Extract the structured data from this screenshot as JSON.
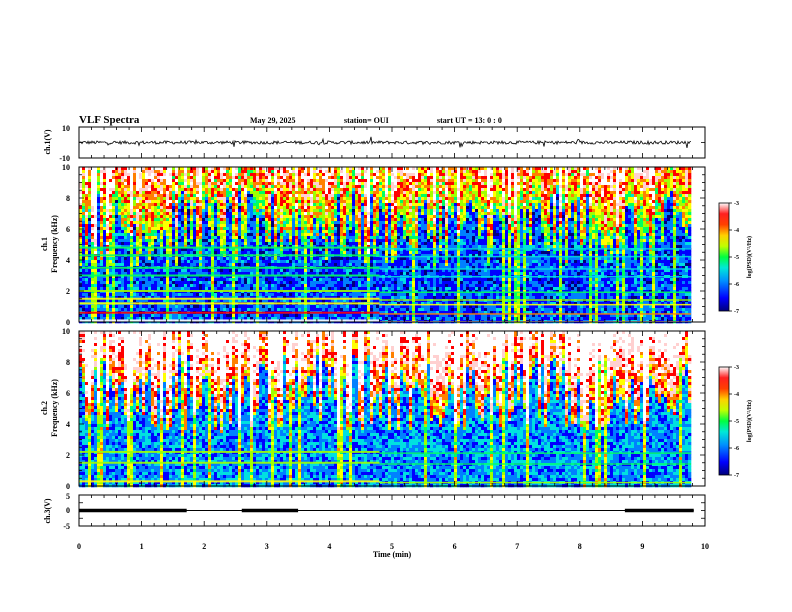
{
  "header": {
    "title": "VLF Spectra",
    "date": "May 29, 2025",
    "station": "station= OUI",
    "start_ut": "start  UT  =   13: 0  : 0"
  },
  "colors": {
    "trace": "#000000",
    "colormap": [
      "#00007a",
      "#0000ff",
      "#0080ff",
      "#00e0e0",
      "#00ff60",
      "#a0ff00",
      "#ffff00",
      "#ff8000",
      "#ff0000",
      "#ffd0d0",
      "#ffffff"
    ]
  },
  "chart_data": [
    {
      "type": "line",
      "name": "ch1-waveform",
      "ylabel": "ch.1(V)",
      "ylim": [
        -10,
        10
      ],
      "yticks": [
        "10",
        "-10"
      ],
      "xlim": [
        0,
        10
      ],
      "baseline_value": 0,
      "noise_amplitude": 1.5
    },
    {
      "type": "heatmap",
      "name": "ch1-spectrogram",
      "ylabel": "ch.1\nFrequency (kHz)",
      "ylim": [
        0,
        10
      ],
      "yticks": [
        "0",
        "2",
        "4",
        "6",
        "8",
        "10"
      ],
      "xlim": [
        0,
        10
      ],
      "colorbar": {
        "label": "log(PSD)(V²/Hz)",
        "ticks": [
          "-3",
          "-4",
          "-5",
          "-6",
          "-7"
        ],
        "range": [
          -7,
          -3
        ]
      },
      "bands": [
        {
          "freq_khz": 0.1,
          "level": -3.0
        },
        {
          "freq_khz": 0.6,
          "level": -4.0
        },
        {
          "freq_khz": 1.2,
          "level": -4.5
        },
        {
          "freq_khz": 1.5,
          "level": -4.8
        },
        {
          "freq_khz": 2.0,
          "level": -5.2
        },
        {
          "freq_khz": 3.0,
          "level": -5.4
        },
        {
          "freq_khz": 3.5,
          "level": -5.4
        },
        {
          "freq_khz": 4.3,
          "level": -5.4
        },
        {
          "freq_khz": 4.8,
          "level": -5.4
        }
      ],
      "band_shift_time_min": 4.8
    },
    {
      "type": "heatmap",
      "name": "ch2-spectrogram",
      "ylabel": "ch.2\nFrequency (kHz)",
      "ylim": [
        0,
        10
      ],
      "yticks": [
        "0",
        "2",
        "4",
        "6",
        "8",
        "10"
      ],
      "xlim": [
        0,
        10
      ],
      "colorbar": {
        "label": "log(PSD)(V²/Hz)",
        "ticks": [
          "-3",
          "-4",
          "-5",
          "-6",
          "-7"
        ],
        "range": [
          -7,
          -3
        ]
      },
      "bands": [
        {
          "freq_khz": 0.3,
          "level": -4.8
        },
        {
          "freq_khz": 1.5,
          "level": -5.0
        },
        {
          "freq_khz": 2.2,
          "level": -5.2
        }
      ],
      "band_shift_time_min": 4.8
    },
    {
      "type": "line",
      "name": "ch3-signal",
      "ylabel": "ch.3(V)",
      "ylim": [
        -5,
        5
      ],
      "yticks": [
        "5",
        "0",
        "-5"
      ],
      "xlim": [
        0,
        10
      ],
      "xlabel": "Time (min)",
      "xticks": [
        "0",
        "1",
        "2",
        "3",
        "4",
        "5",
        "6",
        "7",
        "8",
        "9",
        "10"
      ],
      "baseline_value": 0,
      "thick_segments_min": [
        [
          0,
          1.72
        ],
        [
          2.6,
          3.5
        ],
        [
          8.72,
          9.82
        ]
      ],
      "data_end_min": 9.82
    }
  ]
}
